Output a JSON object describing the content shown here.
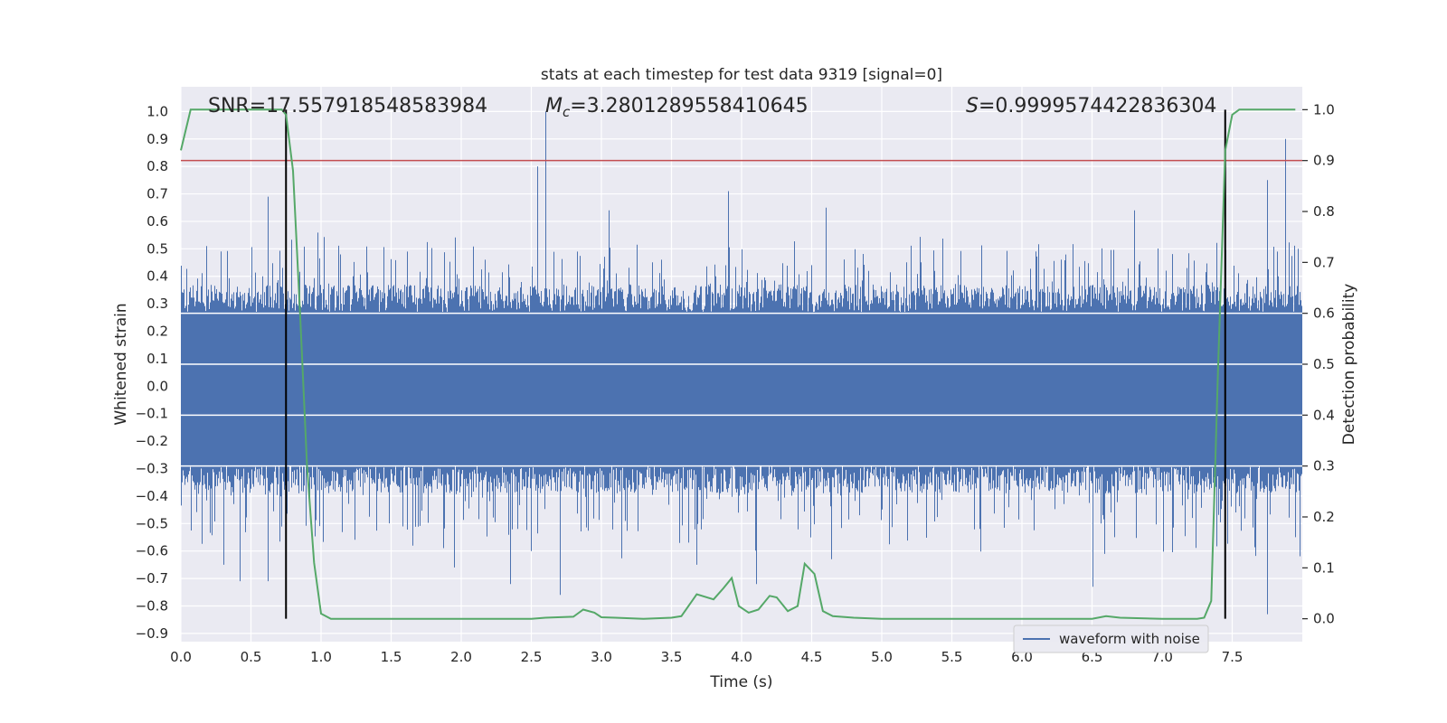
{
  "chart_data": {
    "type": "line",
    "title": "stats at each timestep for test data 9319 [signal=0]",
    "xlabel": "Time (s)",
    "ylabel": "Whitened strain",
    "y2label": "Detection probability",
    "xlim": [
      0.0,
      8.0
    ],
    "ylim": [
      -0.93,
      1.09
    ],
    "y2lim": [
      -0.045,
      1.045
    ],
    "xticks": [
      "0.0",
      "0.5",
      "1.0",
      "1.5",
      "2.0",
      "2.5",
      "3.0",
      "3.5",
      "4.0",
      "4.5",
      "5.0",
      "5.5",
      "6.0",
      "6.5",
      "7.0",
      "7.5"
    ],
    "yticks": [
      "1.0",
      "0.9",
      "0.8",
      "0.7",
      "0.6",
      "0.5",
      "0.4",
      "0.3",
      "0.2",
      "0.1",
      "0.0",
      "−0.1",
      "−0.2",
      "−0.3",
      "−0.4",
      "−0.5",
      "−0.6",
      "−0.7",
      "−0.8",
      "−0.9"
    ],
    "y2ticks": [
      "1.0",
      "0.9",
      "0.8",
      "0.7",
      "0.6",
      "0.5",
      "0.4",
      "0.3",
      "0.2",
      "0.1",
      "0.0"
    ],
    "annotations": {
      "snr": "SNR=17.557918548583984",
      "mc_symbol": "M",
      "mc_sub": "c",
      "mc_value": "=3.2801289558410645",
      "s_symbol": "S",
      "s_value": "=0.9999574422836304"
    },
    "legend": {
      "label": "waveform with noise",
      "placement": "bottom-right"
    },
    "threshold": {
      "axis": "right",
      "value": 0.9
    },
    "vlines": [
      0.75,
      7.45
    ],
    "vline_range": [
      0.0,
      1.0
    ],
    "series": [
      {
        "name": "waveform with noise",
        "axis": "left",
        "kind": "noise",
        "x_range": [
          0.0,
          8.0
        ],
        "core_band": [
          -0.29,
          0.27
        ],
        "typical_peak": 0.45,
        "peaks": [
          [
            0.62,
            0.69
          ],
          [
            2.54,
            0.8
          ],
          [
            2.6,
            1.0
          ],
          [
            3.05,
            0.64
          ],
          [
            3.9,
            0.71
          ],
          [
            4.6,
            0.65
          ],
          [
            6.8,
            0.64
          ],
          [
            7.75,
            0.75
          ],
          [
            7.88,
            0.9
          ]
        ],
        "troughs": [
          [
            0.3,
            -0.65
          ],
          [
            0.42,
            -0.71
          ],
          [
            0.62,
            -0.71
          ],
          [
            1.95,
            -0.66
          ],
          [
            2.35,
            -0.72
          ],
          [
            2.7,
            -0.76
          ],
          [
            3.68,
            -0.65
          ],
          [
            4.1,
            -0.72
          ],
          [
            6.5,
            -0.73
          ],
          [
            7.75,
            -0.83
          ]
        ]
      },
      {
        "name": "",
        "axis": "right",
        "kind": "probability",
        "color": "#55a868",
        "x": [
          0.0,
          0.07,
          0.2,
          0.4,
          0.6,
          0.72,
          0.75,
          0.8,
          0.85,
          0.9,
          0.95,
          1.0,
          1.07,
          1.2,
          1.5,
          2.0,
          2.5,
          2.6,
          2.8,
          2.87,
          2.95,
          3.0,
          3.1,
          3.3,
          3.5,
          3.57,
          3.68,
          3.8,
          3.87,
          3.93,
          3.98,
          4.05,
          4.12,
          4.2,
          4.25,
          4.33,
          4.4,
          4.45,
          4.52,
          4.58,
          4.65,
          4.8,
          5.0,
          5.5,
          6.0,
          6.5,
          6.6,
          6.7,
          7.0,
          7.25,
          7.3,
          7.35,
          7.4,
          7.45,
          7.5,
          7.55,
          7.6,
          7.8,
          7.95
        ],
        "values": [
          0.92,
          1.0,
          1.0,
          1.0,
          1.0,
          1.0,
          0.99,
          0.88,
          0.6,
          0.3,
          0.11,
          0.01,
          0.0,
          0.0,
          0.0,
          0.0,
          0.0,
          0.002,
          0.004,
          0.018,
          0.012,
          0.003,
          0.002,
          0.0,
          0.002,
          0.005,
          0.048,
          0.038,
          0.06,
          0.08,
          0.025,
          0.012,
          0.018,
          0.045,
          0.042,
          0.015,
          0.025,
          0.108,
          0.088,
          0.015,
          0.005,
          0.002,
          0.0,
          0.0,
          0.0,
          0.0,
          0.005,
          0.002,
          0.0,
          0.0,
          0.002,
          0.035,
          0.5,
          0.92,
          0.99,
          1.0,
          1.0,
          1.0,
          1.0
        ]
      }
    ]
  }
}
